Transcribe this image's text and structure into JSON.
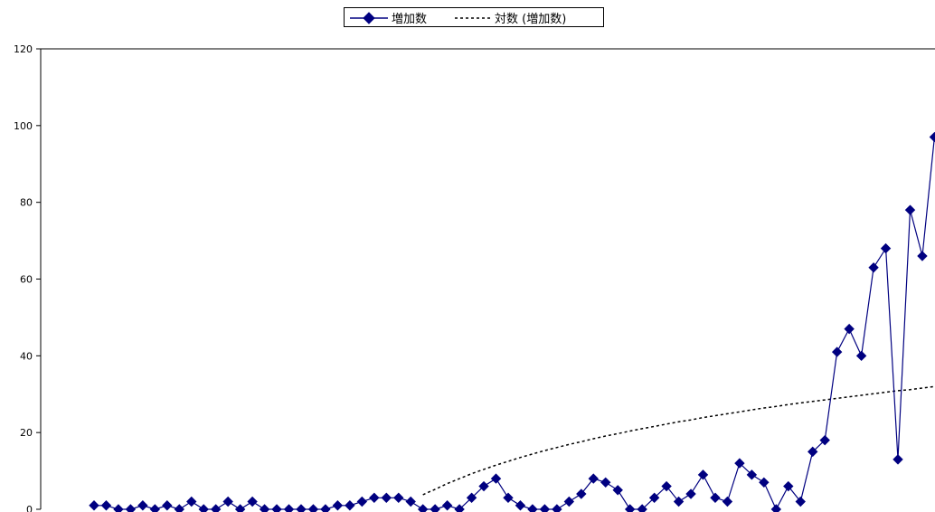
{
  "legend": {
    "series_label": "増加数",
    "trend_label": "対数 (増加数)"
  },
  "chart_data": {
    "type": "line",
    "title": "",
    "xlabel": "",
    "ylabel": "",
    "ylim": [
      0,
      120
    ],
    "yticks": [
      0,
      20,
      40,
      60,
      80,
      100,
      120
    ],
    "grid": false,
    "legend_position": "top",
    "series": [
      {
        "name": "増加数",
        "marker": "diamond",
        "color": "#000080",
        "values": [
          1,
          1,
          0,
          0,
          1,
          0,
          1,
          0,
          2,
          0,
          0,
          2,
          0,
          2,
          0,
          0,
          0,
          0,
          0,
          0,
          1,
          1,
          2,
          3,
          3,
          3,
          2,
          0,
          0,
          1,
          0,
          3,
          6,
          8,
          3,
          1,
          0,
          0,
          0,
          2,
          4,
          8,
          7,
          5,
          0,
          0,
          3,
          6,
          2,
          4,
          9,
          3,
          2,
          12,
          9,
          7,
          0,
          6,
          2,
          15,
          18,
          41,
          47,
          40,
          63,
          68,
          13,
          78,
          66,
          97
        ]
      },
      {
        "name": "対数 (増加数)",
        "type": "log-trendline",
        "style": "dotted",
        "color": "#000000",
        "start_at": 27,
        "values": [
          3.8,
          5.2,
          6.7,
          8.0,
          9.3,
          10.4,
          11.5,
          12.5,
          13.5,
          14.4,
          15.3,
          16.1,
          16.9,
          17.6,
          18.4,
          19.1,
          19.7,
          20.4,
          21.0,
          21.6,
          22.2,
          22.8,
          23.3,
          23.9,
          24.4,
          24.9,
          25.4,
          25.9,
          26.4,
          26.8,
          27.3,
          27.7,
          28.1,
          28.5,
          28.9,
          29.3,
          29.7,
          30.1,
          30.5,
          30.9,
          31.2,
          31.6,
          32.0
        ]
      }
    ]
  },
  "colors": {
    "series": "#000080",
    "trend": "#000000",
    "axis": "#000000"
  }
}
